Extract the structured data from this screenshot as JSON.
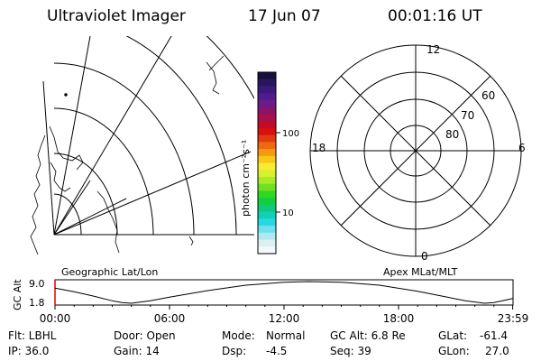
{
  "header": {
    "instrument": "Ultraviolet Imager",
    "date": "17 Jun 07",
    "time": "00:01:16 UT"
  },
  "colorbar": {
    "unit_label": "photon cm⁻²s⁻¹",
    "ticks": [
      "100",
      "10"
    ],
    "colors": [
      "#1a1040",
      "#2a1660",
      "#3a1a78",
      "#501c8c",
      "#6c1c8a",
      "#8a1466",
      "#a8104a",
      "#c00c28",
      "#d81010",
      "#e43a10",
      "#ee6a10",
      "#f49a10",
      "#f8c818",
      "#f8ec30",
      "#d8f030",
      "#a8ea28",
      "#70e020",
      "#30d820",
      "#10d040",
      "#10c880",
      "#10d0b8",
      "#28d8e0",
      "#70e0ec",
      "#b0e8f0",
      "#dcf0f4",
      "#f4f8fa"
    ]
  },
  "polar": {
    "lat_labels": [
      "80",
      "70",
      "60"
    ],
    "mlt_labels": {
      "top": "12",
      "bottom": "0",
      "left": "18",
      "right": "6"
    }
  },
  "strip": {
    "left_label": "Geographic Lat/Lon",
    "right_label": "Apex MLat/MLT",
    "y_axis_label": "GC Alt",
    "y_ticks": [
      "9.0",
      "1.8"
    ],
    "x_ticks": [
      "00:00",
      "06:00",
      "12:00",
      "18:00",
      "23:59"
    ],
    "curve": {
      "x_hours": [
        0,
        1,
        2,
        3,
        3.5,
        4,
        5,
        6,
        8,
        10,
        12,
        13.3,
        15,
        17,
        19,
        20.5,
        21.5,
        22.5,
        23,
        23.5,
        23.98
      ],
      "alt_re": [
        6.8,
        5.6,
        4.2,
        2.6,
        2.0,
        1.8,
        2.6,
        3.8,
        6.0,
        7.8,
        8.8,
        9.0,
        8.8,
        7.8,
        5.8,
        3.9,
        2.6,
        1.8,
        2.0,
        2.7,
        3.4
      ]
    }
  },
  "status": {
    "filter": "Flt: LBHL",
    "ip": "IP: 36.0",
    "door": "Door: Open",
    "gain": "Gain: 14",
    "mode_label": "Mode:",
    "mode_value": "Normal",
    "dsp_label": "Dsp:",
    "dsp_value": "-4.5",
    "gc_alt": "GC Alt: 6.8 Re",
    "seq": "Seq: 39",
    "glat_label": "GLat:",
    "glat_value": "-61.4",
    "glon_label": "GLon:",
    "glon_value": "27.0"
  }
}
